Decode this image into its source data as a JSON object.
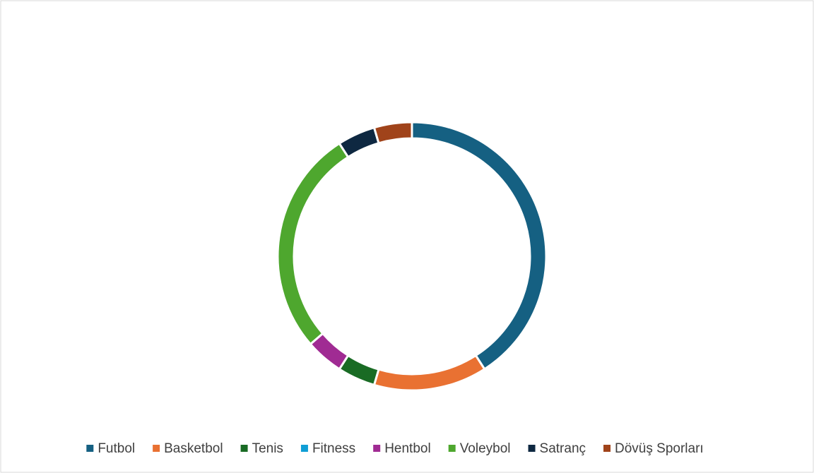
{
  "chart_data": {
    "type": "donut",
    "categories": [
      "Futbol",
      "Basketbol",
      "Tenis",
      "Fitness",
      "Hentbol",
      "Voleybol",
      "Satranç",
      "Dövüş Sporları"
    ],
    "values": [
      9,
      3,
      1,
      0,
      1,
      6,
      1,
      1
    ],
    "colors": [
      "#156082",
      "#e97132",
      "#196b24",
      "#0f9ed5",
      "#a02b93",
      "#4ea72e",
      "#0e2841",
      "#a0431a"
    ],
    "legend": "bottom"
  }
}
